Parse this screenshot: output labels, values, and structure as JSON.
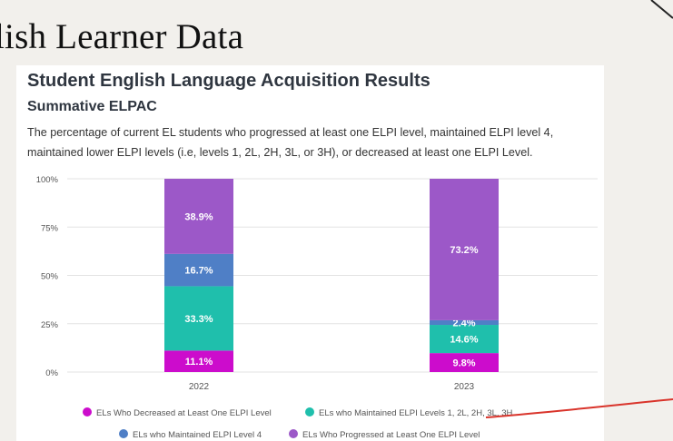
{
  "slide": {
    "title": "lish Learner Data"
  },
  "card": {
    "title": "Student English Language Acquisition Results",
    "subtitle": "Summative ELPAC",
    "description": "The percentage of current EL students who progressed at least one ELPI level, maintained ELPI level 4, maintained lower ELPI levels (i.e, levels 1, 2L, 2H, 3L, or 3H), or decreased at least one ELPI Level."
  },
  "chart_data": {
    "type": "bar",
    "stacked": true,
    "categories": [
      "2022",
      "2023"
    ],
    "ylim": [
      0,
      100
    ],
    "yticks": [
      "0%",
      "25%",
      "50%",
      "75%",
      "100%"
    ],
    "grid": true,
    "legend_position": "bottom",
    "series": [
      {
        "name": "ELs Who Decreased at Least One ELPI Level",
        "color": "#cc0ccc",
        "values": [
          11.1,
          9.8
        ],
        "labels": [
          "11.1%",
          "9.8%"
        ]
      },
      {
        "name": "ELs who Maintained ELPI Levels 1, 2L, 2H, 3L, 3H",
        "color": "#1fbfac",
        "values": [
          33.3,
          14.6
        ],
        "labels": [
          "33.3%",
          "14.6%"
        ]
      },
      {
        "name": "ELs who Maintained ELPI Level 4",
        "color": "#4f7fc6",
        "values": [
          16.7,
          2.4
        ],
        "labels": [
          "16.7%",
          "2.4%"
        ]
      },
      {
        "name": "ELs Who Progressed at Least One ELPI Level",
        "color": "#9c58c8",
        "values": [
          38.9,
          73.2
        ],
        "labels": [
          "38.9%",
          "73.2%"
        ]
      }
    ]
  }
}
